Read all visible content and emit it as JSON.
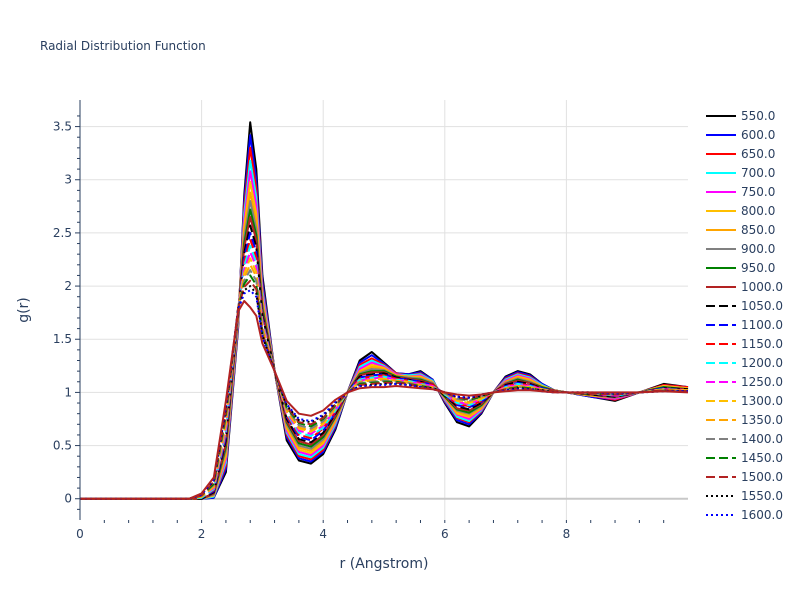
{
  "chart_data": {
    "type": "line",
    "title": "Radial Distribution Function",
    "xlabel": "r (Angstrom)",
    "ylabel": "g(r)",
    "xlim": [
      0,
      10
    ],
    "ylim": [
      -0.2,
      3.75
    ],
    "x_ticks": [
      0,
      2,
      4,
      6,
      8
    ],
    "y_ticks": [
      0,
      0.5,
      1,
      1.5,
      2,
      2.5,
      3,
      3.5
    ],
    "x_tick_labels": [
      "0",
      "2",
      "4",
      "6",
      "8"
    ],
    "y_tick_labels": [
      "0",
      "0.5",
      "1",
      "1.5",
      "2",
      "2.5",
      "3",
      "3.5"
    ],
    "grid": true,
    "legend_position": "right",
    "x": [
      0.0,
      1.6,
      1.8,
      2.0,
      2.2,
      2.4,
      2.6,
      2.7,
      2.8,
      2.9,
      3.0,
      3.2,
      3.4,
      3.6,
      3.8,
      4.0,
      4.2,
      4.4,
      4.6,
      4.8,
      5.0,
      5.2,
      5.4,
      5.6,
      5.8,
      6.0,
      6.2,
      6.4,
      6.6,
      6.8,
      7.0,
      7.2,
      7.4,
      7.6,
      7.8,
      8.0,
      8.4,
      8.8,
      9.2,
      9.6,
      10.0
    ],
    "series": [
      {
        "name": "550.0",
        "color": "#000000",
        "dash": "solid",
        "values": [
          0,
          0,
          0,
          0,
          0.01,
          0.25,
          1.6,
          2.85,
          3.54,
          3.1,
          2.1,
          1.2,
          0.55,
          0.36,
          0.33,
          0.42,
          0.65,
          1.0,
          1.3,
          1.38,
          1.28,
          1.18,
          1.17,
          1.2,
          1.12,
          0.9,
          0.72,
          0.68,
          0.8,
          1.0,
          1.15,
          1.2,
          1.17,
          1.08,
          1.02,
          1.0,
          0.96,
          0.92,
          1.0,
          1.08,
          1.05
        ]
      },
      {
        "name": "600.0",
        "color": "#0000ff",
        "dash": "solid",
        "values": [
          0,
          0,
          0,
          0,
          0.01,
          0.28,
          1.62,
          2.8,
          3.42,
          3.0,
          2.05,
          1.2,
          0.58,
          0.38,
          0.35,
          0.44,
          0.67,
          1.0,
          1.28,
          1.35,
          1.27,
          1.18,
          1.17,
          1.19,
          1.12,
          0.91,
          0.74,
          0.7,
          0.81,
          1.0,
          1.14,
          1.19,
          1.16,
          1.08,
          1.02,
          1.0,
          0.96,
          0.93,
          1.0,
          1.07,
          1.05
        ]
      },
      {
        "name": "650.0",
        "color": "#ff0000",
        "dash": "solid",
        "values": [
          0,
          0,
          0,
          0,
          0.02,
          0.31,
          1.64,
          2.74,
          3.3,
          2.92,
          2.0,
          1.2,
          0.6,
          0.4,
          0.37,
          0.46,
          0.69,
          1.0,
          1.26,
          1.32,
          1.26,
          1.18,
          1.16,
          1.18,
          1.11,
          0.92,
          0.76,
          0.72,
          0.82,
          1.0,
          1.13,
          1.18,
          1.15,
          1.07,
          1.02,
          1.0,
          0.97,
          0.93,
          1.0,
          1.07,
          1.05
        ]
      },
      {
        "name": "700.0",
        "color": "#00ffff",
        "dash": "solid",
        "values": [
          0,
          0,
          0,
          0,
          0.02,
          0.34,
          1.66,
          2.68,
          3.18,
          2.84,
          1.96,
          1.2,
          0.62,
          0.42,
          0.39,
          0.48,
          0.7,
          1.0,
          1.24,
          1.3,
          1.25,
          1.17,
          1.16,
          1.17,
          1.11,
          0.93,
          0.77,
          0.73,
          0.83,
          1.0,
          1.12,
          1.17,
          1.14,
          1.07,
          1.02,
          1.0,
          0.97,
          0.94,
          1.0,
          1.06,
          1.04
        ]
      },
      {
        "name": "750.0",
        "color": "#ff00ff",
        "dash": "solid",
        "values": [
          0,
          0,
          0,
          0,
          0.03,
          0.37,
          1.68,
          2.62,
          3.08,
          2.76,
          1.92,
          1.2,
          0.64,
          0.44,
          0.41,
          0.5,
          0.72,
          1.0,
          1.22,
          1.28,
          1.24,
          1.17,
          1.15,
          1.16,
          1.1,
          0.94,
          0.79,
          0.75,
          0.84,
          1.0,
          1.11,
          1.16,
          1.13,
          1.06,
          1.02,
          1.0,
          0.97,
          0.94,
          1.0,
          1.06,
          1.04
        ]
      },
      {
        "name": "800.0",
        "color": "#ffbf00",
        "dash": "solid",
        "values": [
          0,
          0,
          0,
          0,
          0.03,
          0.4,
          1.7,
          2.56,
          2.98,
          2.68,
          1.88,
          1.2,
          0.66,
          0.46,
          0.43,
          0.52,
          0.73,
          1.0,
          1.2,
          1.26,
          1.23,
          1.16,
          1.15,
          1.15,
          1.1,
          0.95,
          0.8,
          0.77,
          0.85,
          1.0,
          1.1,
          1.15,
          1.12,
          1.06,
          1.02,
          1.0,
          0.97,
          0.95,
          1.0,
          1.06,
          1.04
        ]
      },
      {
        "name": "850.0",
        "color": "#ffa500",
        "dash": "solid",
        "values": [
          0,
          0,
          0,
          0,
          0.04,
          0.43,
          1.72,
          2.5,
          2.88,
          2.6,
          1.85,
          1.2,
          0.68,
          0.48,
          0.45,
          0.54,
          0.74,
          1.0,
          1.19,
          1.24,
          1.22,
          1.16,
          1.14,
          1.14,
          1.09,
          0.95,
          0.82,
          0.78,
          0.86,
          1.0,
          1.1,
          1.14,
          1.11,
          1.05,
          1.02,
          1.0,
          0.98,
          0.95,
          1.0,
          1.05,
          1.04
        ]
      },
      {
        "name": "900.0",
        "color": "#808080",
        "dash": "solid",
        "values": [
          0,
          0,
          0,
          0,
          0.04,
          0.46,
          1.73,
          2.45,
          2.8,
          2.54,
          1.82,
          1.2,
          0.7,
          0.5,
          0.47,
          0.56,
          0.76,
          1.0,
          1.18,
          1.22,
          1.21,
          1.15,
          1.14,
          1.13,
          1.09,
          0.96,
          0.83,
          0.8,
          0.87,
          1.0,
          1.09,
          1.13,
          1.1,
          1.05,
          1.02,
          1.0,
          0.98,
          0.95,
          1.0,
          1.05,
          1.03
        ]
      },
      {
        "name": "950.0",
        "color": "#008000",
        "dash": "solid",
        "values": [
          0,
          0,
          0,
          0,
          0.05,
          0.49,
          1.74,
          2.4,
          2.72,
          2.48,
          1.79,
          1.2,
          0.72,
          0.52,
          0.49,
          0.58,
          0.77,
          1.0,
          1.17,
          1.2,
          1.2,
          1.15,
          1.13,
          1.12,
          1.08,
          0.96,
          0.84,
          0.81,
          0.88,
          1.0,
          1.08,
          1.12,
          1.09,
          1.05,
          1.02,
          1.0,
          0.98,
          0.96,
          1.0,
          1.05,
          1.03
        ]
      },
      {
        "name": "1000.0",
        "color": "#b22222",
        "dash": "solid",
        "values": [
          0,
          0,
          0,
          0,
          0.05,
          0.52,
          1.75,
          2.36,
          2.65,
          2.43,
          1.76,
          1.2,
          0.73,
          0.54,
          0.51,
          0.6,
          0.78,
          1.0,
          1.16,
          1.19,
          1.19,
          1.14,
          1.13,
          1.11,
          1.08,
          0.97,
          0.85,
          0.83,
          0.89,
          1.0,
          1.08,
          1.11,
          1.09,
          1.04,
          1.02,
          1.0,
          0.98,
          0.96,
          1.0,
          1.04,
          1.03
        ]
      },
      {
        "name": "1050.0",
        "color": "#000000",
        "dash": "dash",
        "values": [
          0,
          0,
          0,
          0,
          0.06,
          0.55,
          1.76,
          2.31,
          2.57,
          2.37,
          1.73,
          1.2,
          0.75,
          0.56,
          0.53,
          0.62,
          0.8,
          1.0,
          1.15,
          1.17,
          1.18,
          1.14,
          1.12,
          1.1,
          1.07,
          0.97,
          0.87,
          0.84,
          0.9,
          1.0,
          1.07,
          1.1,
          1.08,
          1.04,
          1.01,
          1.0,
          0.98,
          0.96,
          1.0,
          1.04,
          1.03
        ]
      },
      {
        "name": "1100.0",
        "color": "#0000ff",
        "dash": "dash",
        "values": [
          0,
          0,
          0,
          0.01,
          0.07,
          0.58,
          1.77,
          2.27,
          2.5,
          2.32,
          1.7,
          1.2,
          0.77,
          0.58,
          0.55,
          0.64,
          0.81,
          1.0,
          1.14,
          1.16,
          1.17,
          1.13,
          1.12,
          1.1,
          1.07,
          0.98,
          0.88,
          0.86,
          0.91,
          1.0,
          1.06,
          1.09,
          1.07,
          1.04,
          1.01,
          1.0,
          0.99,
          0.97,
          1.0,
          1.04,
          1.02
        ]
      },
      {
        "name": "1150.0",
        "color": "#ff0000",
        "dash": "dash",
        "values": [
          0,
          0,
          0,
          0.01,
          0.08,
          0.61,
          1.78,
          2.23,
          2.44,
          2.27,
          1.68,
          1.2,
          0.78,
          0.6,
          0.57,
          0.66,
          0.82,
          1.0,
          1.13,
          1.15,
          1.16,
          1.13,
          1.11,
          1.09,
          1.07,
          0.98,
          0.89,
          0.87,
          0.92,
          1.0,
          1.06,
          1.08,
          1.07,
          1.03,
          1.01,
          1.0,
          0.99,
          0.97,
          1.0,
          1.03,
          1.02
        ]
      },
      {
        "name": "1200.0",
        "color": "#00ffff",
        "dash": "dash",
        "values": [
          0,
          0,
          0,
          0.01,
          0.09,
          0.64,
          1.78,
          2.19,
          2.38,
          2.22,
          1.66,
          1.2,
          0.8,
          0.62,
          0.59,
          0.67,
          0.83,
          1.0,
          1.12,
          1.14,
          1.15,
          1.12,
          1.11,
          1.08,
          1.06,
          0.98,
          0.9,
          0.88,
          0.93,
          1.0,
          1.05,
          1.08,
          1.06,
          1.03,
          1.01,
          1.0,
          0.99,
          0.97,
          1.0,
          1.03,
          1.02
        ]
      },
      {
        "name": "1250.0",
        "color": "#ff00ff",
        "dash": "dash",
        "values": [
          0,
          0,
          0,
          0.02,
          0.1,
          0.67,
          1.79,
          2.15,
          2.32,
          2.18,
          1.64,
          1.2,
          0.81,
          0.64,
          0.61,
          0.69,
          0.84,
          1.0,
          1.11,
          1.13,
          1.14,
          1.12,
          1.1,
          1.08,
          1.06,
          0.99,
          0.91,
          0.89,
          0.94,
          1.0,
          1.05,
          1.07,
          1.06,
          1.03,
          1.01,
          1.0,
          0.99,
          0.97,
          1.0,
          1.03,
          1.02
        ]
      },
      {
        "name": "1300.0",
        "color": "#ffbf00",
        "dash": "dash",
        "values": [
          0,
          0,
          0,
          0.02,
          0.11,
          0.7,
          1.79,
          2.12,
          2.26,
          2.13,
          1.62,
          1.2,
          0.82,
          0.66,
          0.63,
          0.7,
          0.85,
          1.0,
          1.1,
          1.12,
          1.13,
          1.11,
          1.1,
          1.07,
          1.05,
          0.99,
          0.92,
          0.9,
          0.94,
          1.0,
          1.04,
          1.06,
          1.05,
          1.03,
          1.01,
          1.0,
          0.99,
          0.98,
          1.0,
          1.03,
          1.02
        ]
      },
      {
        "name": "1350.0",
        "color": "#ffa500",
        "dash": "dash",
        "values": [
          0,
          0,
          0,
          0.02,
          0.12,
          0.73,
          1.79,
          2.08,
          2.2,
          2.09,
          1.6,
          1.2,
          0.84,
          0.67,
          0.64,
          0.72,
          0.86,
          1.0,
          1.1,
          1.11,
          1.12,
          1.11,
          1.09,
          1.07,
          1.05,
          0.99,
          0.93,
          0.91,
          0.95,
          1.0,
          1.04,
          1.06,
          1.05,
          1.02,
          1.01,
          1.0,
          0.99,
          0.98,
          1.0,
          1.02,
          1.02
        ]
      },
      {
        "name": "1400.0",
        "color": "#808080",
        "dash": "dash",
        "values": [
          0,
          0,
          0,
          0.03,
          0.13,
          0.76,
          1.79,
          2.05,
          2.15,
          2.05,
          1.58,
          1.2,
          0.85,
          0.69,
          0.66,
          0.73,
          0.87,
          1.0,
          1.09,
          1.1,
          1.11,
          1.1,
          1.09,
          1.06,
          1.05,
          0.99,
          0.94,
          0.92,
          0.96,
          1.0,
          1.03,
          1.05,
          1.04,
          1.02,
          1.01,
          1.0,
          0.99,
          0.98,
          1.0,
          1.02,
          1.01
        ]
      },
      {
        "name": "1450.0",
        "color": "#008000",
        "dash": "dash",
        "values": [
          0,
          0,
          0,
          0.03,
          0.14,
          0.79,
          1.79,
          2.02,
          2.1,
          2.01,
          1.56,
          1.2,
          0.86,
          0.71,
          0.68,
          0.75,
          0.88,
          1.0,
          1.08,
          1.09,
          1.1,
          1.1,
          1.08,
          1.06,
          1.04,
          1.0,
          0.95,
          0.93,
          0.96,
          1.0,
          1.03,
          1.05,
          1.04,
          1.02,
          1.01,
          1.0,
          0.99,
          0.98,
          1.0,
          1.02,
          1.01
        ]
      },
      {
        "name": "1500.0",
        "color": "#b22222",
        "dash": "dash",
        "values": [
          0,
          0,
          0,
          0.03,
          0.16,
          0.82,
          1.79,
          1.99,
          2.05,
          1.97,
          1.55,
          1.2,
          0.87,
          0.72,
          0.7,
          0.76,
          0.89,
          1.0,
          1.07,
          1.08,
          1.09,
          1.09,
          1.08,
          1.05,
          1.04,
          1.0,
          0.95,
          0.94,
          0.97,
          1.0,
          1.03,
          1.04,
          1.03,
          1.02,
          1.01,
          1.0,
          0.99,
          0.98,
          1.0,
          1.02,
          1.01
        ]
      },
      {
        "name": "1550.0",
        "color": "#000000",
        "dash": "dot",
        "values": [
          0,
          0,
          0,
          0.04,
          0.17,
          0.85,
          1.78,
          1.96,
          2.0,
          1.93,
          1.53,
          1.2,
          0.88,
          0.74,
          0.72,
          0.78,
          0.9,
          1.0,
          1.06,
          1.07,
          1.08,
          1.08,
          1.07,
          1.05,
          1.04,
          1.0,
          0.96,
          0.95,
          0.97,
          1.0,
          1.02,
          1.04,
          1.03,
          1.02,
          1.0,
          1.0,
          1.0,
          0.99,
          1.0,
          1.01,
          1.01
        ]
      },
      {
        "name": "1600.0",
        "color": "#0000ff",
        "dash": "dot",
        "values": [
          0,
          0,
          0,
          0.04,
          0.18,
          0.88,
          1.78,
          1.93,
          1.96,
          1.9,
          1.52,
          1.2,
          0.89,
          0.75,
          0.73,
          0.79,
          0.91,
          1.0,
          1.06,
          1.06,
          1.07,
          1.08,
          1.07,
          1.05,
          1.03,
          1.0,
          0.96,
          0.95,
          0.98,
          1.0,
          1.02,
          1.03,
          1.03,
          1.01,
          1.0,
          1.0,
          1.0,
          0.99,
          1.0,
          1.01,
          1.01
        ]
      },
      {
        "name": "",
        "color": "#b22222",
        "dash": "solid",
        "values": [
          0,
          0,
          0,
          0.05,
          0.2,
          0.92,
          1.76,
          1.86,
          1.8,
          1.72,
          1.46,
          1.2,
          0.92,
          0.8,
          0.78,
          0.83,
          0.93,
          1.0,
          1.04,
          1.05,
          1.05,
          1.06,
          1.05,
          1.04,
          1.03,
          1.0,
          0.98,
          0.97,
          0.98,
          1.0,
          1.01,
          1.02,
          1.02,
          1.01,
          1.0,
          1.0,
          1.0,
          1.0,
          1.0,
          1.01,
          1.0
        ]
      }
    ]
  }
}
